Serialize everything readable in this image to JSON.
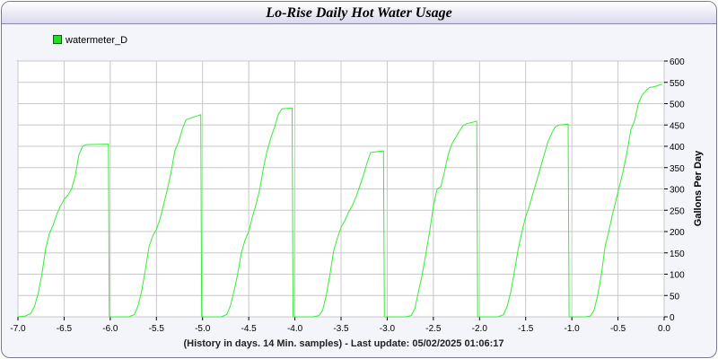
{
  "chart_data": {
    "type": "line",
    "title": "Lo-Rise Daily Hot Water Usage",
    "xlabel": "(History in days. 14 Min. samples) - Last update: 05/02/2025 01:06:17",
    "ylabel": "Gallons Per Day",
    "xlim": [
      -7.0,
      0.0
    ],
    "ylim": [
      0,
      600
    ],
    "x_ticks": [
      "-7.0",
      "-6.5",
      "-6.0",
      "-5.5",
      "-5.0",
      "-4.5",
      "-4.0",
      "-3.5",
      "-3.0",
      "-2.5",
      "-2.0",
      "-1.5",
      "-1.0",
      "-0.5",
      "0.0"
    ],
    "y_ticks": [
      "0",
      "50",
      "100",
      "150",
      "200",
      "250",
      "300",
      "350",
      "400",
      "450",
      "500",
      "550",
      "600"
    ],
    "grid": true,
    "legend_position": "top-left",
    "series": [
      {
        "name": "watermeter_D",
        "color": "#33ee33",
        "points": [
          [
            -7.0,
            0
          ],
          [
            -6.92,
            2
          ],
          [
            -6.86,
            8
          ],
          [
            -6.82,
            25
          ],
          [
            -6.78,
            55
          ],
          [
            -6.74,
            100
          ],
          [
            -6.7,
            160
          ],
          [
            -6.66,
            195
          ],
          [
            -6.62,
            215
          ],
          [
            -6.58,
            240
          ],
          [
            -6.54,
            260
          ],
          [
            -6.5,
            275
          ],
          [
            -6.46,
            285
          ],
          [
            -6.42,
            300
          ],
          [
            -6.38,
            330
          ],
          [
            -6.34,
            380
          ],
          [
            -6.3,
            400
          ],
          [
            -6.26,
            404
          ],
          [
            -6.02,
            405
          ],
          [
            -6.01,
            0
          ],
          [
            -5.8,
            0
          ],
          [
            -5.74,
            5
          ],
          [
            -5.7,
            25
          ],
          [
            -5.66,
            60
          ],
          [
            -5.62,
            110
          ],
          [
            -5.58,
            165
          ],
          [
            -5.54,
            190
          ],
          [
            -5.5,
            205
          ],
          [
            -5.46,
            230
          ],
          [
            -5.42,
            265
          ],
          [
            -5.38,
            300
          ],
          [
            -5.34,
            340
          ],
          [
            -5.3,
            390
          ],
          [
            -5.26,
            410
          ],
          [
            -5.22,
            440
          ],
          [
            -5.18,
            462
          ],
          [
            -5.12,
            467
          ],
          [
            -5.02,
            474
          ],
          [
            -5.01,
            0
          ],
          [
            -4.8,
            0
          ],
          [
            -4.74,
            5
          ],
          [
            -4.7,
            25
          ],
          [
            -4.66,
            60
          ],
          [
            -4.62,
            100
          ],
          [
            -4.58,
            150
          ],
          [
            -4.54,
            180
          ],
          [
            -4.5,
            200
          ],
          [
            -4.46,
            235
          ],
          [
            -4.42,
            265
          ],
          [
            -4.38,
            300
          ],
          [
            -4.34,
            350
          ],
          [
            -4.3,
            390
          ],
          [
            -4.26,
            420
          ],
          [
            -4.22,
            445
          ],
          [
            -4.18,
            475
          ],
          [
            -4.14,
            488
          ],
          [
            -4.03,
            490
          ],
          [
            -4.02,
            0
          ],
          [
            -3.8,
            0
          ],
          [
            -3.74,
            3
          ],
          [
            -3.7,
            15
          ],
          [
            -3.66,
            50
          ],
          [
            -3.62,
            100
          ],
          [
            -3.58,
            155
          ],
          [
            -3.54,
            185
          ],
          [
            -3.5,
            210
          ],
          [
            -3.46,
            225
          ],
          [
            -3.42,
            245
          ],
          [
            -3.38,
            260
          ],
          [
            -3.34,
            280
          ],
          [
            -3.3,
            305
          ],
          [
            -3.26,
            330
          ],
          [
            -3.22,
            360
          ],
          [
            -3.18,
            385
          ],
          [
            -3.1,
            388
          ],
          [
            -3.04,
            389
          ],
          [
            -3.03,
            0
          ],
          [
            -2.8,
            0
          ],
          [
            -2.74,
            3
          ],
          [
            -2.7,
            20
          ],
          [
            -2.66,
            60
          ],
          [
            -2.62,
            100
          ],
          [
            -2.58,
            150
          ],
          [
            -2.54,
            200
          ],
          [
            -2.5,
            260
          ],
          [
            -2.46,
            300
          ],
          [
            -2.42,
            305
          ],
          [
            -2.38,
            340
          ],
          [
            -2.34,
            380
          ],
          [
            -2.3,
            405
          ],
          [
            -2.26,
            420
          ],
          [
            -2.22,
            435
          ],
          [
            -2.18,
            448
          ],
          [
            -2.14,
            453
          ],
          [
            -2.03,
            459
          ],
          [
            -2.02,
            0
          ],
          [
            -1.8,
            0
          ],
          [
            -1.74,
            5
          ],
          [
            -1.7,
            25
          ],
          [
            -1.66,
            60
          ],
          [
            -1.62,
            110
          ],
          [
            -1.58,
            160
          ],
          [
            -1.54,
            200
          ],
          [
            -1.5,
            235
          ],
          [
            -1.46,
            260
          ],
          [
            -1.42,
            290
          ],
          [
            -1.38,
            320
          ],
          [
            -1.34,
            350
          ],
          [
            -1.3,
            380
          ],
          [
            -1.26,
            410
          ],
          [
            -1.22,
            430
          ],
          [
            -1.18,
            445
          ],
          [
            -1.14,
            450
          ],
          [
            -1.04,
            452
          ],
          [
            -1.03,
            0
          ],
          [
            -0.85,
            0
          ],
          [
            -0.8,
            2
          ],
          [
            -0.76,
            15
          ],
          [
            -0.72,
            50
          ],
          [
            -0.68,
            100
          ],
          [
            -0.64,
            165
          ],
          [
            -0.6,
            200
          ],
          [
            -0.56,
            240
          ],
          [
            -0.52,
            275
          ],
          [
            -0.48,
            310
          ],
          [
            -0.44,
            345
          ],
          [
            -0.4,
            390
          ],
          [
            -0.36,
            440
          ],
          [
            -0.32,
            460
          ],
          [
            -0.28,
            500
          ],
          [
            -0.24,
            520
          ],
          [
            -0.2,
            530
          ],
          [
            -0.16,
            538
          ],
          [
            -0.1,
            540
          ],
          [
            -0.04,
            545
          ],
          [
            -0.02,
            545
          ]
        ]
      }
    ]
  }
}
